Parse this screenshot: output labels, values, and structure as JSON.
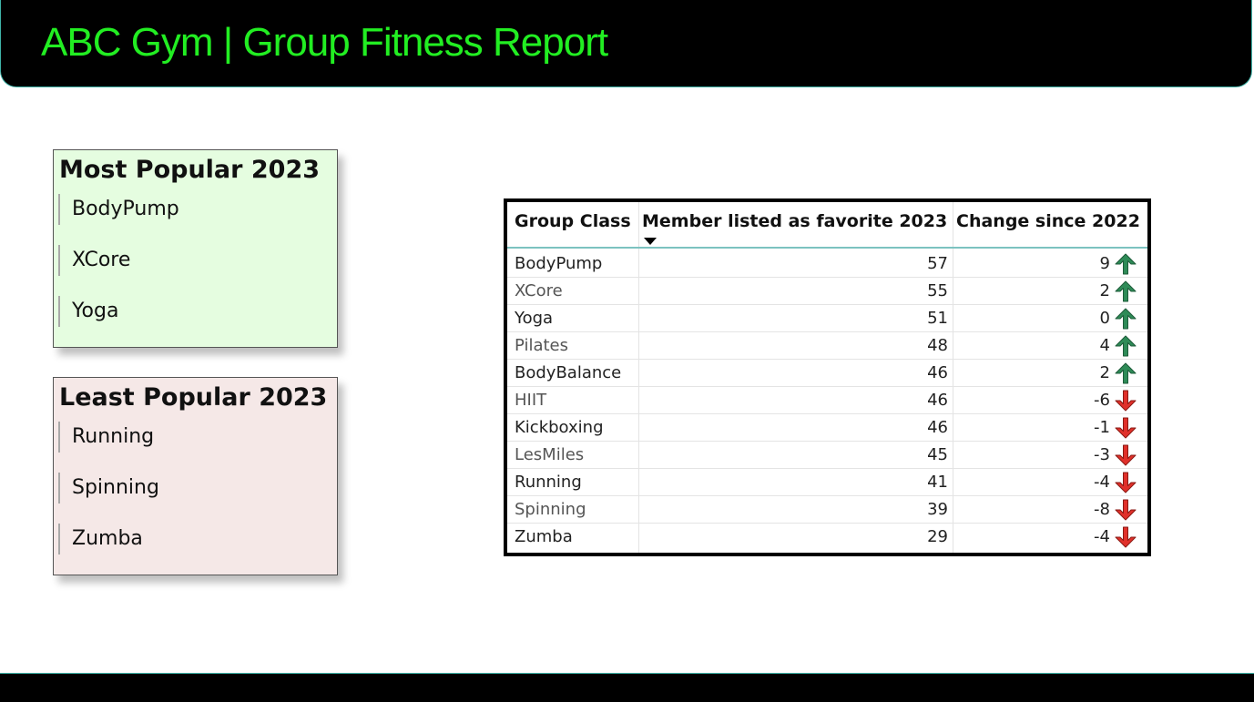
{
  "header": {
    "title": "ABC Gym | Group Fitness Report"
  },
  "most_popular": {
    "title": "Most Popular 2023",
    "items": [
      "BodyPump",
      "XCore",
      "Yoga"
    ],
    "background": "#e5fde0"
  },
  "least_popular": {
    "title": "Least Popular 2023",
    "items": [
      "Running",
      "Spinning",
      "Zumba"
    ],
    "background": "#f5e8e7"
  },
  "table": {
    "columns": [
      "Group Class",
      "Member listed as favorite 2023",
      "Change since 2022"
    ],
    "sorted_column": "Member listed as favorite 2023",
    "sort_direction": "descending",
    "rows": [
      {
        "group_class": "BodyPump",
        "members": "57",
        "change": "9",
        "trend": "up"
      },
      {
        "group_class": "XCore",
        "members": "55",
        "change": "2",
        "trend": "up"
      },
      {
        "group_class": "Yoga",
        "members": "51",
        "change": "0",
        "trend": "up"
      },
      {
        "group_class": "Pilates",
        "members": "48",
        "change": "4",
        "trend": "up"
      },
      {
        "group_class": "BodyBalance",
        "members": "46",
        "change": "2",
        "trend": "up"
      },
      {
        "group_class": "HIIT",
        "members": "46",
        "change": "-6",
        "trend": "down"
      },
      {
        "group_class": "Kickboxing",
        "members": "46",
        "change": "-1",
        "trend": "down"
      },
      {
        "group_class": "LesMiles",
        "members": "45",
        "change": "-3",
        "trend": "down"
      },
      {
        "group_class": "Running",
        "members": "41",
        "change": "-4",
        "trend": "down"
      },
      {
        "group_class": "Spinning",
        "members": "39",
        "change": "-8",
        "trend": "down"
      },
      {
        "group_class": "Zumba",
        "members": "29",
        "change": "-4",
        "trend": "down"
      }
    ],
    "icons": {
      "up": "green-up-arrow-icon",
      "down": "red-down-arrow-icon"
    }
  },
  "colors": {
    "header_bg": "#000000",
    "title_text": "#22ee22",
    "up_arrow": "#2e8b57",
    "down_arrow": "#e0302a"
  }
}
